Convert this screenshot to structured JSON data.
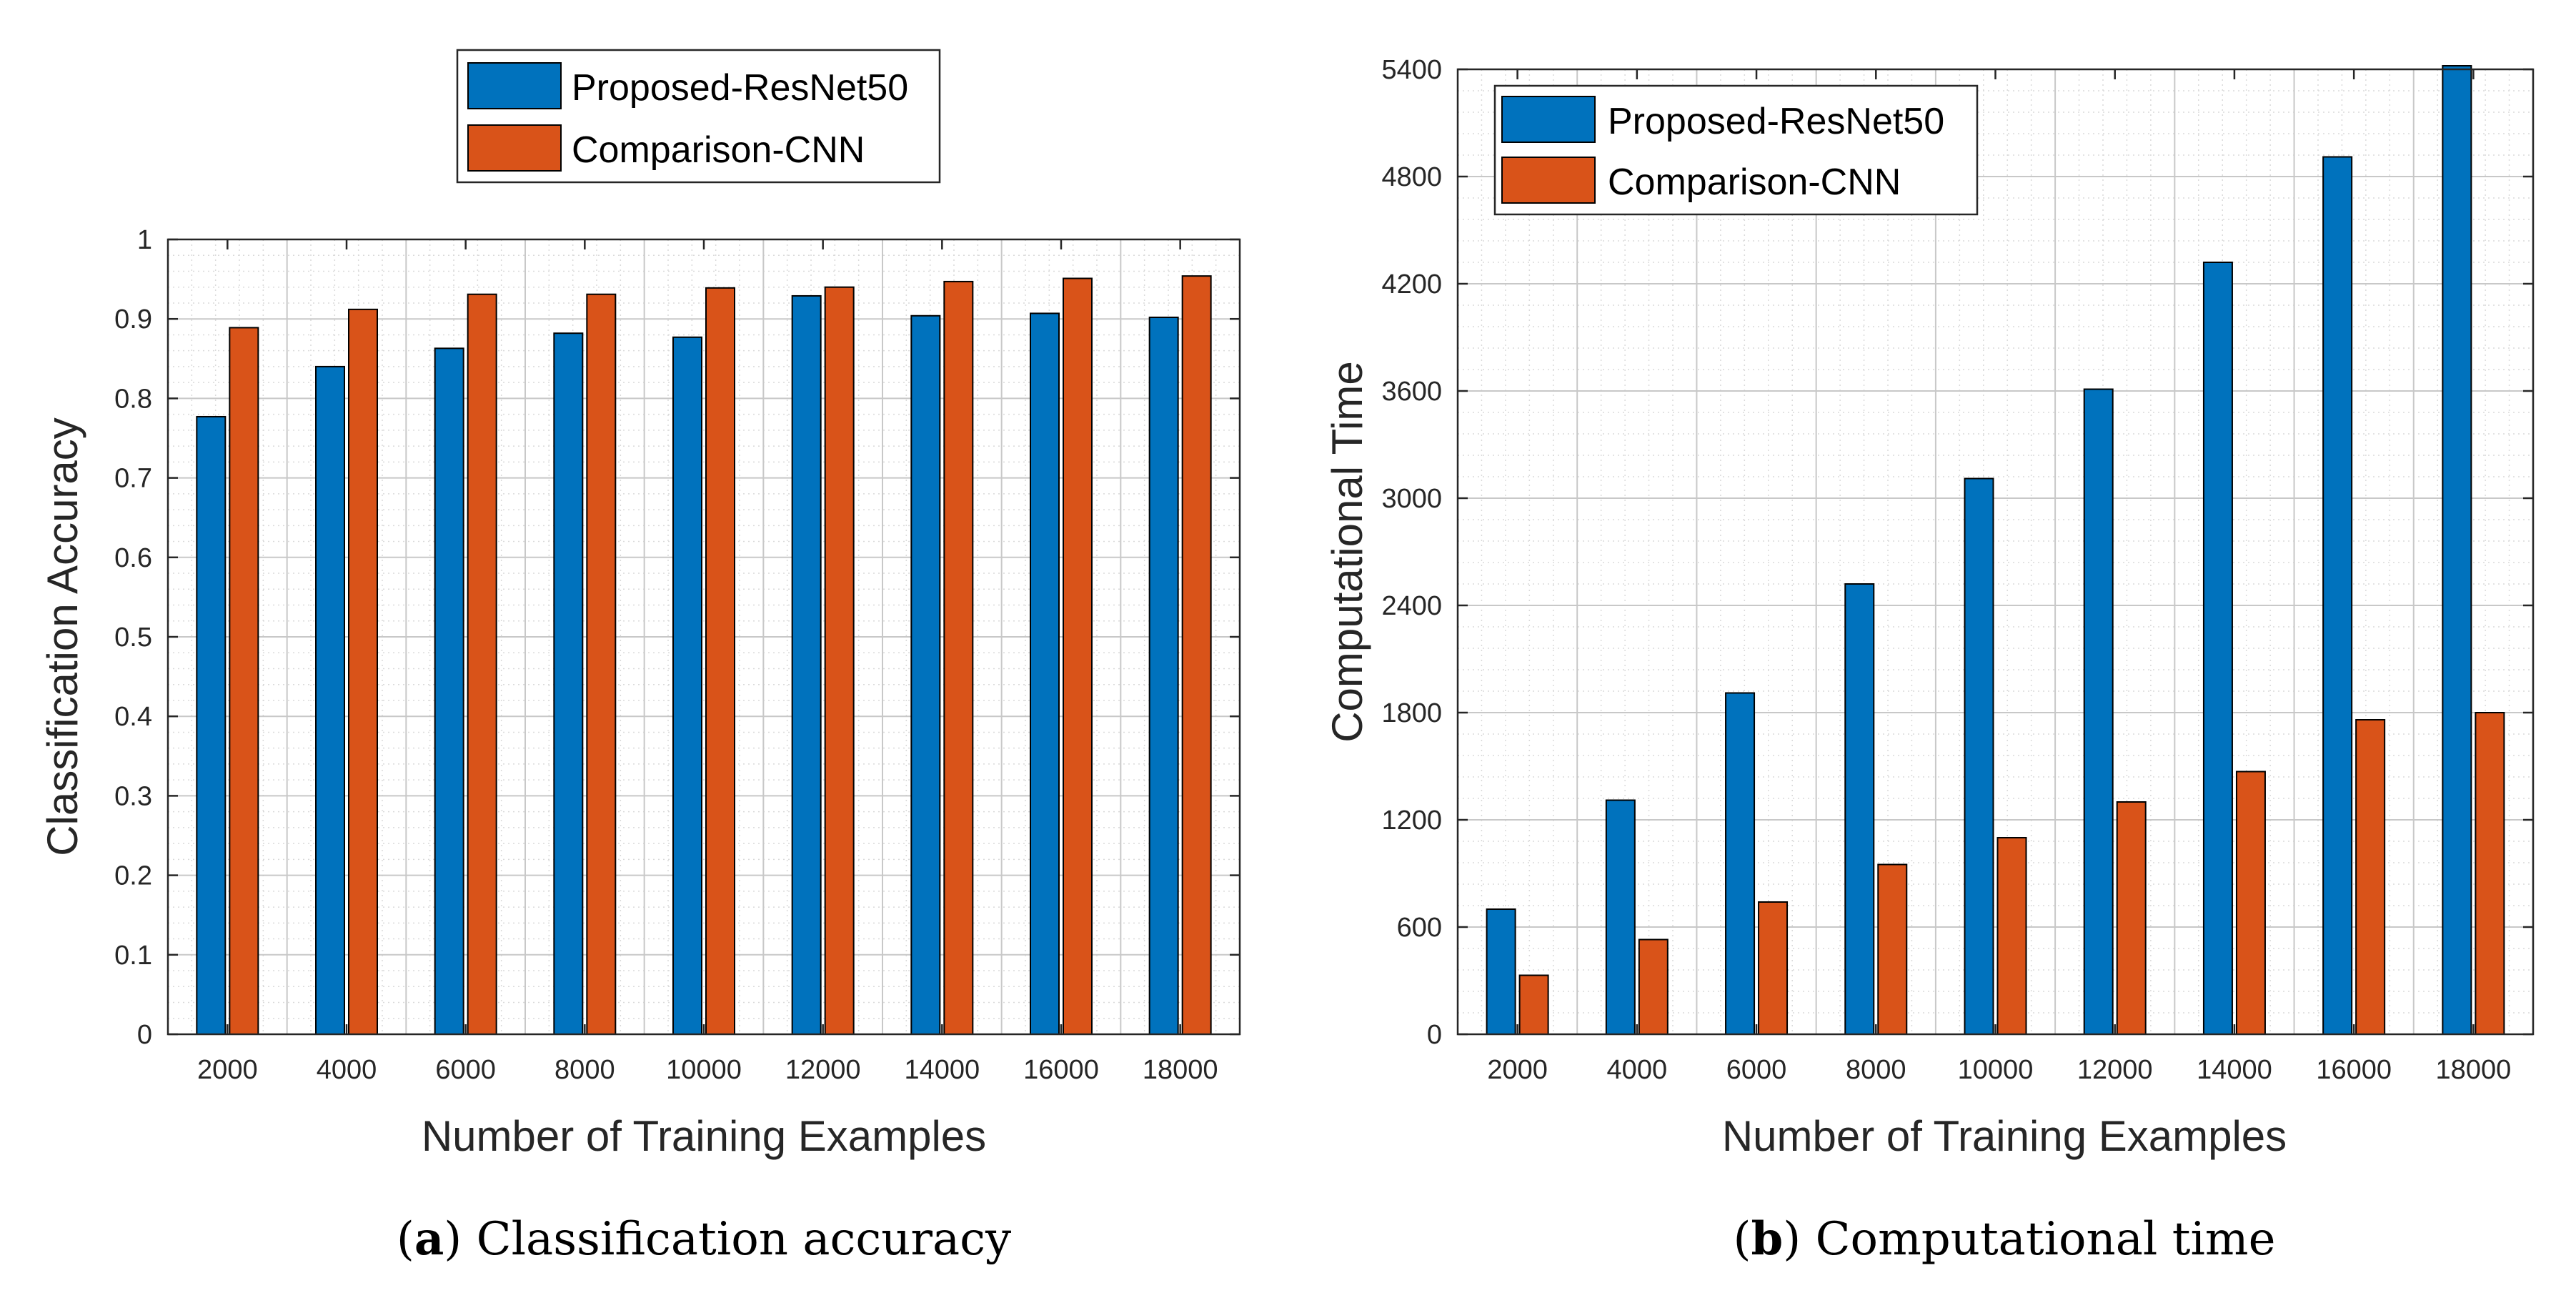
{
  "colors": {
    "series_a": "#0072BD",
    "series_b": "#D95319",
    "grid": "#c8c8c8",
    "minor_grid": "#dadada",
    "axis": "#262626"
  },
  "chart_data": [
    {
      "type": "bar",
      "panel": "a",
      "title": "",
      "xlabel": "Number of Training Examples",
      "ylabel": "Classification Accuracy",
      "categories": [
        "2000",
        "4000",
        "6000",
        "8000",
        "10000",
        "12000",
        "14000",
        "16000",
        "18000"
      ],
      "series": [
        {
          "name": "Proposed-ResNet50",
          "values": [
            0.777,
            0.84,
            0.863,
            0.882,
            0.877,
            0.929,
            0.904,
            0.907,
            0.902
          ]
        },
        {
          "name": "Comparison-CNN",
          "values": [
            0.889,
            0.912,
            0.931,
            0.931,
            0.939,
            0.94,
            0.947,
            0.951,
            0.954
          ]
        }
      ],
      "ylim": [
        0,
        1
      ],
      "yticks": [
        0,
        0.1,
        0.2,
        0.3,
        0.4,
        0.5,
        0.6,
        0.7,
        0.8,
        0.9,
        1
      ],
      "ytick_labels": [
        "0",
        "0.1",
        "0.2",
        "0.3",
        "0.4",
        "0.5",
        "0.6",
        "0.7",
        "0.8",
        "0.9",
        "1"
      ],
      "grid": true,
      "legend_position": "above-plot",
      "caption_label": "a",
      "caption_text": "Classification accuracy"
    },
    {
      "type": "bar",
      "panel": "b",
      "title": "",
      "xlabel": "Number of Training Examples",
      "ylabel": "Computational Time",
      "categories": [
        "2000",
        "4000",
        "6000",
        "8000",
        "10000",
        "12000",
        "14000",
        "16000",
        "18000"
      ],
      "series": [
        {
          "name": "Proposed-ResNet50",
          "values": [
            700,
            1310,
            1910,
            2520,
            3110,
            3610,
            4320,
            4910,
            5420
          ]
        },
        {
          "name": "Comparison-CNN",
          "values": [
            330,
            530,
            740,
            950,
            1100,
            1300,
            1470,
            1760,
            1800
          ]
        }
      ],
      "ylim": [
        0,
        5400
      ],
      "yticks": [
        0,
        600,
        1200,
        1800,
        2400,
        3000,
        3600,
        4200,
        4800,
        5400
      ],
      "ytick_labels": [
        "0",
        "600",
        "1200",
        "1800",
        "2400",
        "3000",
        "3600",
        "4200",
        "4800",
        "5400"
      ],
      "grid": true,
      "legend_position": "top-left",
      "caption_label": "b",
      "caption_text": "Computational time"
    }
  ]
}
